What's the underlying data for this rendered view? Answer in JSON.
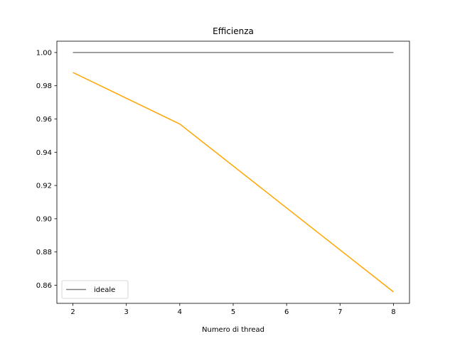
{
  "chart_data": {
    "type": "line",
    "title": "Efficienza",
    "xlabel": "Numero di thread",
    "ylabel": "",
    "xlim": [
      1.7,
      8.3
    ],
    "ylim": [
      0.8491,
      1.0068
    ],
    "grid": false,
    "legend_position": "lower left",
    "x_ticks": [
      "2",
      "3",
      "4",
      "5",
      "6",
      "7",
      "8"
    ],
    "y_ticks": [
      "0.86",
      "0.88",
      "0.90",
      "0.92",
      "0.94",
      "0.96",
      "0.98",
      "1.00"
    ],
    "series": [
      {
        "name": "ideale",
        "color": "#808080",
        "x": [
          2,
          4,
          8
        ],
        "y": [
          1.0,
          1.0,
          1.0
        ]
      },
      {
        "name": "",
        "color": "#ffa500",
        "x": [
          2,
          4,
          8
        ],
        "y": [
          0.988,
          0.957,
          0.856
        ]
      }
    ]
  }
}
